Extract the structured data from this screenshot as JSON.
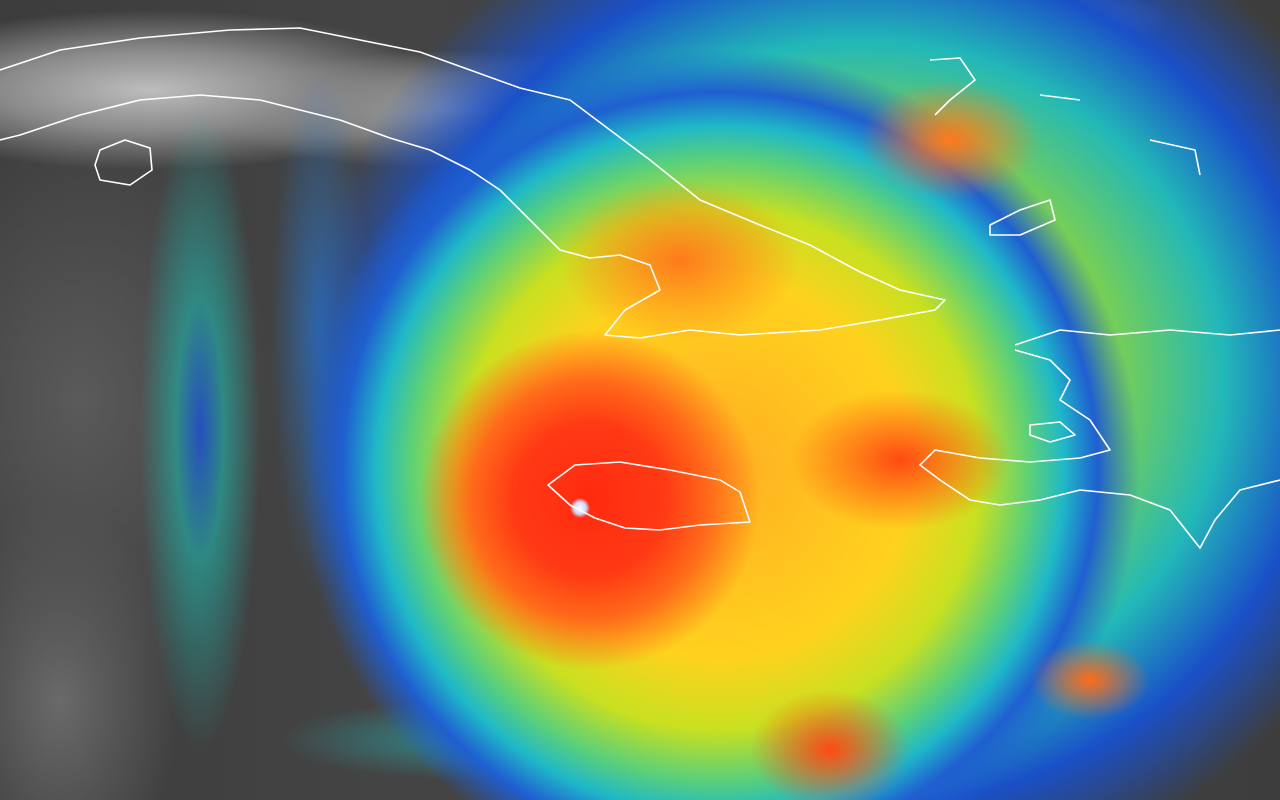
{
  "image": {
    "subject": "enhanced-infrared-satellite-view",
    "overlay": "coastline-outlines",
    "colors": {
      "eye": "#ffffff",
      "core": "#ff2a10",
      "inner_band": "#ffae22",
      "mid_band": "#ffd21e",
      "outer_band": "#5ad07a",
      "edge_band": "#1f5fd0",
      "clear_sky": "#3c3c3c",
      "coastline": "#ffffff"
    }
  }
}
